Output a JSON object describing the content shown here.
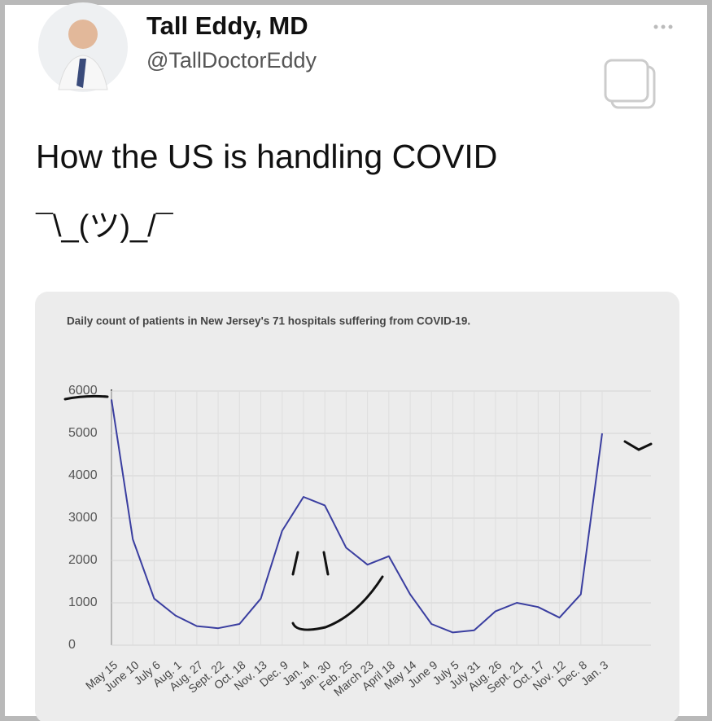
{
  "tweet": {
    "name": "Tall Eddy, MD",
    "handle": "@TallDoctorEddy",
    "lines": [
      "How the US is handling COVID",
      "¯\\_(ツ)_/¯"
    ]
  },
  "chart_data": {
    "type": "line",
    "title": "Daily count of patients in New Jersey's 71 hospitals suffering from COVID-19.",
    "categories": [
      "May 15",
      "June 10",
      "July 6",
      "Aug. 1",
      "Aug. 27",
      "Sept. 22",
      "Oct. 18",
      "Nov. 13",
      "Dec. 9",
      "Jan. 4",
      "Jan. 30",
      "Feb. 25",
      "March 23",
      "April 18",
      "May 14",
      "June 9",
      "July 5",
      "July 31",
      "Aug. 26",
      "Sept. 21",
      "Oct. 17",
      "Nov. 12",
      "Dec. 8",
      "Jan. 3"
    ],
    "series": [
      {
        "color": "#3a3ea0",
        "values": [
          5800,
          2500,
          1100,
          700,
          450,
          400,
          500,
          1100,
          2700,
          3500,
          3300,
          2300,
          1900,
          2100,
          1200,
          500,
          300,
          350,
          800,
          1000,
          900,
          650,
          1200,
          5000
        ]
      }
    ],
    "ylim": [
      0,
      6000
    ],
    "yticks": [
      0,
      1000,
      2000,
      3000,
      4000,
      5000,
      6000
    ],
    "grid": true
  }
}
